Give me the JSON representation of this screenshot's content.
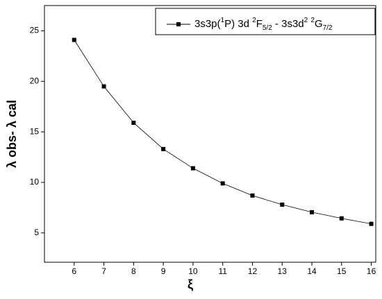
{
  "chart_data": {
    "type": "line",
    "x_label": "ξ",
    "y_label": "λ obs- λ cal",
    "x": [
      6,
      7,
      8,
      9,
      10,
      11,
      12,
      13,
      14,
      15,
      16
    ],
    "series": [
      {
        "name_parts": [
          {
            "text": "3s3p(",
            "shift": null
          },
          {
            "text": "1",
            "shift": "sup"
          },
          {
            "text": "P) 3d ",
            "shift": null
          },
          {
            "text": "2",
            "shift": "sup"
          },
          {
            "text": "F",
            "shift": null
          },
          {
            "text": "5/2",
            "shift": "sub"
          },
          {
            "text": " - 3s3d",
            "shift": null
          },
          {
            "text": "2",
            "shift": "sup"
          },
          {
            "text": " ",
            "shift": null
          },
          {
            "text": "2",
            "shift": "sup"
          },
          {
            "text": "G",
            "shift": null
          },
          {
            "text": "7/2",
            "shift": "sub"
          }
        ],
        "color": "#000000",
        "marker": "square",
        "values": [
          24.1,
          19.5,
          15.9,
          13.3,
          11.4,
          9.9,
          8.7,
          7.8,
          7.05,
          6.44,
          5.9
        ]
      }
    ],
    "xlim": [
      5,
      16.15
    ],
    "xticks": [
      6,
      7,
      8,
      9,
      10,
      11,
      12,
      13,
      14,
      15,
      16
    ],
    "ylim": [
      2.1,
      27.5
    ],
    "yticks": [
      5,
      10,
      15,
      20,
      25
    ],
    "grid": false,
    "legend_position": "top-right"
  }
}
